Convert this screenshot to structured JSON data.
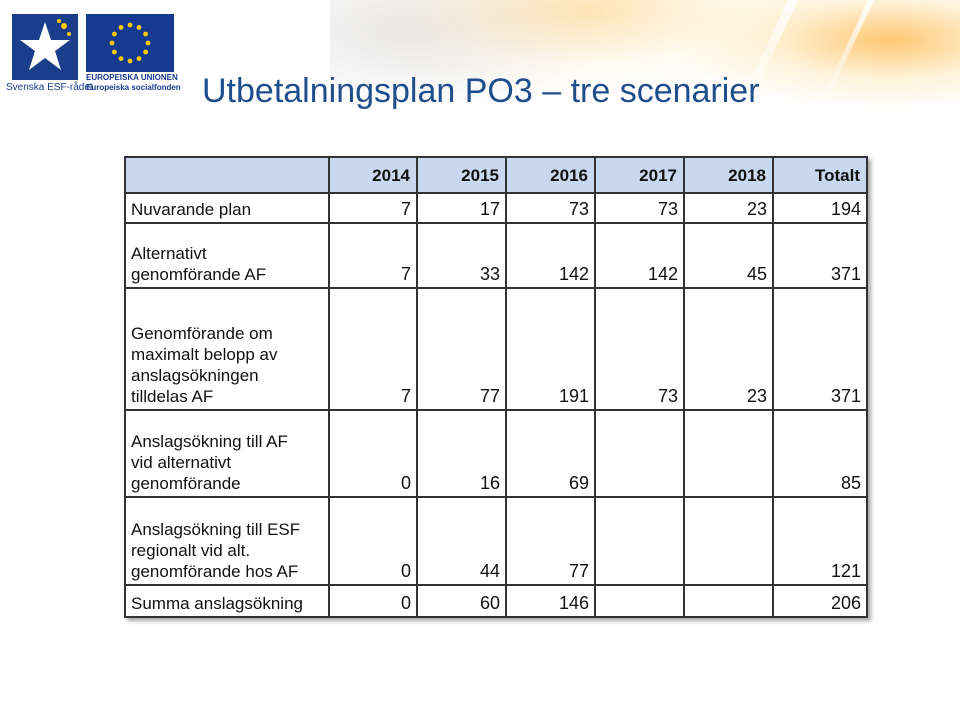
{
  "header": {
    "esf_caption": "Svenska ESF-rådet",
    "eu_line1": "EUROPEISKA UNIONEN",
    "eu_line2": "Europeiska socialfonden",
    "colors": {
      "title": "#1f4e8c",
      "esf_blue": "#1a3e8c",
      "eu_blue": "#153a8f",
      "eu_star": "#ffcc00",
      "header_fill": "#c9d8ee"
    }
  },
  "slide": {
    "title": "Utbetalningsplan PO3 – tre scenarier"
  },
  "table": {
    "columns": [
      "2014",
      "2015",
      "2016",
      "2017",
      "2018",
      "Totalt"
    ],
    "rows": [
      {
        "label_lines": [
          "Nuvarande plan"
        ],
        "values": [
          "7",
          "17",
          "73",
          "73",
          "23",
          "194"
        ]
      },
      {
        "label_lines": [
          "Alternativt",
          "genomförande AF"
        ],
        "values": [
          "7",
          "33",
          "142",
          "142",
          "45",
          "371"
        ]
      },
      {
        "label_lines": [
          "Genomförande om",
          "maximalt belopp av",
          "anslagsökningen",
          "tilldelas AF"
        ],
        "values": [
          "7",
          "77",
          "191",
          "73",
          "23",
          "371"
        ]
      },
      {
        "label_lines": [
          "Anslagsökning till AF",
          "vid alternativt",
          "genomförande"
        ],
        "values": [
          "0",
          "16",
          "69",
          "",
          "",
          "85"
        ]
      },
      {
        "label_lines": [
          "Anslagsökning till ESF",
          "regionalt vid alt.",
          "genomförande hos AF"
        ],
        "values": [
          "0",
          "44",
          "77",
          "",
          "",
          "121"
        ]
      },
      {
        "label_lines": [
          "Summa anslagsökning"
        ],
        "values": [
          "0",
          "60",
          "146",
          "",
          "",
          "206"
        ]
      }
    ]
  }
}
